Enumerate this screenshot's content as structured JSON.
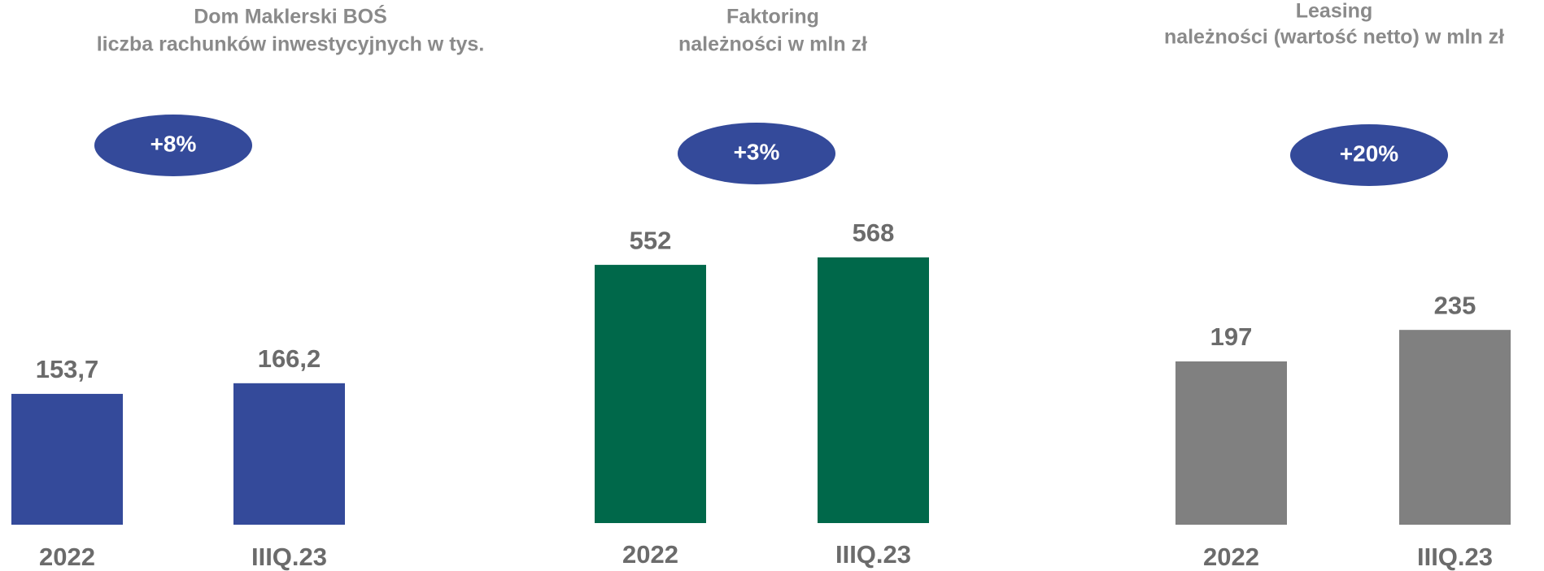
{
  "chart_data": [
    {
      "type": "bar",
      "title": "Dom Maklerski BOŚ",
      "subtitle": "liczba rachunków inwestycyjnych w tys.",
      "categories": [
        "2022",
        "IIIQ.23"
      ],
      "values": [
        153.7,
        166.2
      ],
      "value_labels": [
        "153,7",
        "166,2"
      ],
      "color": "#344a9a",
      "ylim": [
        0,
        521
      ],
      "annotation": "+8%"
    },
    {
      "type": "bar",
      "title": "Faktoring",
      "subtitle": "należności w mln zł",
      "categories": [
        "2022",
        "IIIQ.23"
      ],
      "values": [
        552,
        568
      ],
      "color": "#00684a",
      "ylim": [
        0,
        948
      ],
      "annotation": "+3%"
    },
    {
      "type": "bar",
      "title": "Leasing",
      "subtitle": "należności (wartość netto) w mln zł",
      "categories": [
        "2022",
        "IIIQ.23"
      ],
      "values": [
        197,
        235
      ],
      "color": "#808080",
      "ylim": [
        0,
        535
      ],
      "annotation": "+20%"
    }
  ]
}
